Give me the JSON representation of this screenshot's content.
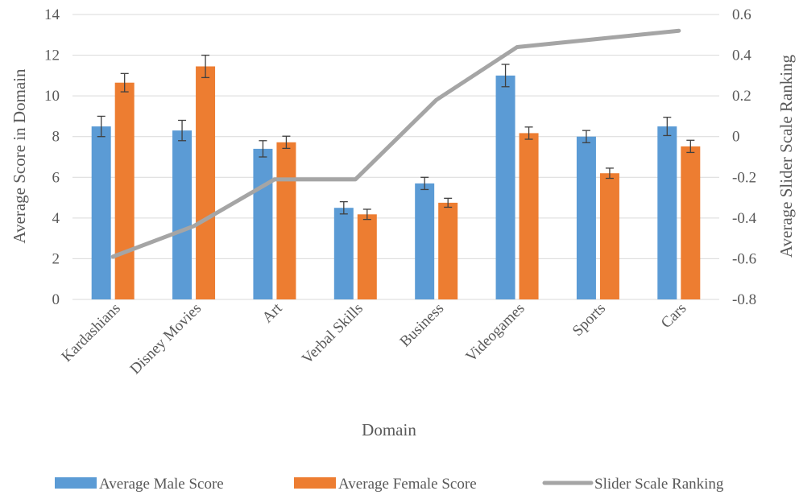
{
  "chart_data": {
    "type": "bar",
    "categories": [
      "Kardashians",
      "Disney Movies",
      "Art",
      "Verbal Skills",
      "Business",
      "Videogames",
      "Sports",
      "Cars"
    ],
    "series": [
      {
        "name": "Average Male Score",
        "type": "bar",
        "axis": "left",
        "color": "#5b9bd5",
        "values": [
          8.5,
          8.3,
          7.4,
          4.5,
          5.7,
          11.0,
          8.0,
          8.5
        ],
        "error": [
          0.5,
          0.5,
          0.4,
          0.3,
          0.3,
          0.55,
          0.3,
          0.45
        ]
      },
      {
        "name": "Average Female Score",
        "type": "bar",
        "axis": "left",
        "color": "#ed7d31",
        "values": [
          10.65,
          11.45,
          7.72,
          4.18,
          4.75,
          8.17,
          6.2,
          7.52
        ],
        "error": [
          0.45,
          0.55,
          0.3,
          0.25,
          0.22,
          0.3,
          0.25,
          0.3
        ]
      },
      {
        "name": "Slider Scale Ranking",
        "type": "line",
        "axis": "right",
        "color": "#a5a5a5",
        "values": [
          -0.59,
          -0.44,
          -0.21,
          -0.21,
          0.18,
          0.44,
          0.48,
          0.52
        ]
      }
    ],
    "xlabel": "Domain",
    "ylabel": "Average Score in Domain",
    "y2label": "Average Slider Scale Ranking",
    "ylim": [
      0,
      14
    ],
    "yticks": [
      "0",
      "2",
      "4",
      "6",
      "8",
      "10",
      "12",
      "14"
    ],
    "y2lim": [
      -0.8,
      0.6
    ],
    "y2ticks": [
      "-0.8",
      "-0.6",
      "-0.4",
      "-0.2",
      "0",
      "0.2",
      "0.4",
      "0.6"
    ],
    "grid": true,
    "legend": "bottom"
  }
}
